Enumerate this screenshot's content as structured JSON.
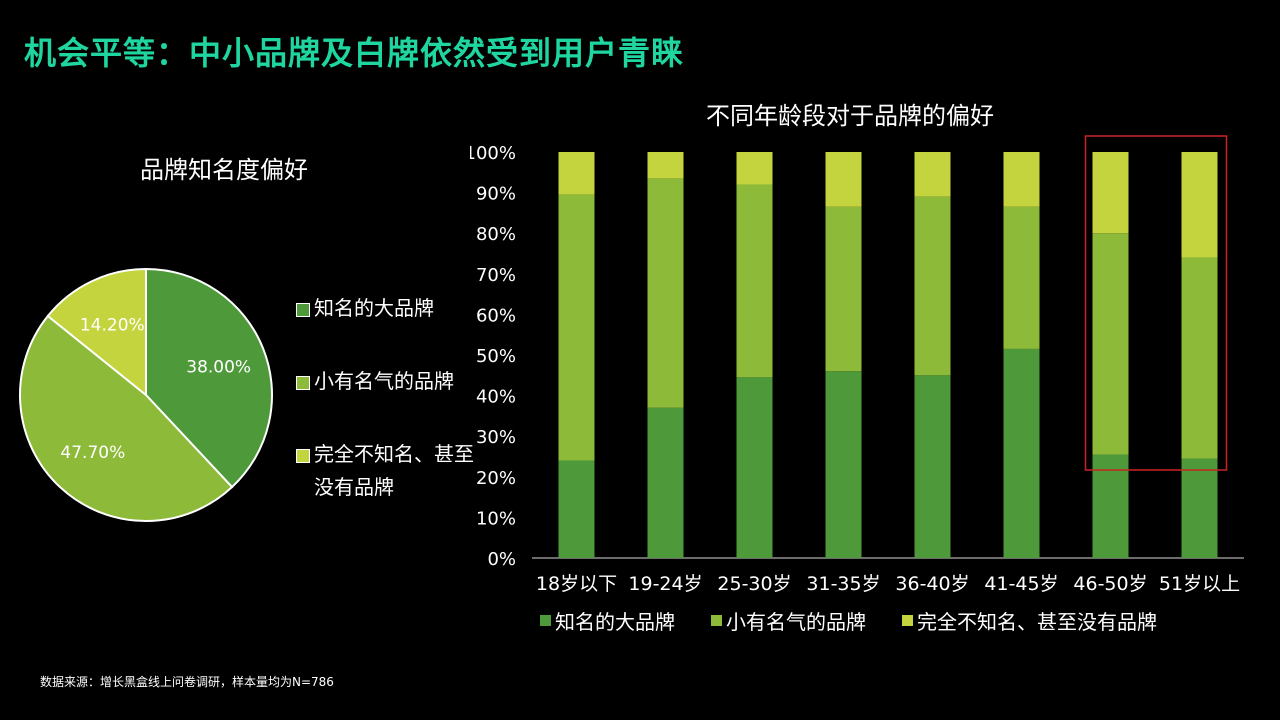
{
  "title": "机会平等：中小品牌及白牌依然受到用户青睐",
  "colors": {
    "title": "#1fd6a0",
    "known": "#4e9a3a",
    "somewhat": "#8dba39",
    "unknown": "#c4d43f",
    "highlight": "#cc2222"
  },
  "pie": {
    "title": "品牌知名度偏好",
    "legend": [
      "知名的大品牌",
      "小有名气的品牌",
      "完全不知名、甚至没有品牌"
    ]
  },
  "bar": {
    "title": "不同年龄段对于品牌的偏好",
    "legend": [
      "知名的大品牌",
      "小有名气的品牌",
      "完全不知名、甚至没有品牌"
    ]
  },
  "chart_data": [
    {
      "type": "pie",
      "title": "品牌知名度偏好",
      "labels": [
        "知名的大品牌",
        "小有名气的品牌",
        "完全不知名、甚至没有品牌"
      ],
      "values": [
        38.0,
        47.7,
        14.2
      ],
      "data_labels": [
        "38.00%",
        "47.70%",
        "14.20%"
      ],
      "legend": "right"
    },
    {
      "type": "bar",
      "stacked": true,
      "title": "不同年龄段对于品牌的偏好",
      "categories": [
        "18岁以下",
        "19-24岁",
        "25-30岁",
        "31-35岁",
        "36-40岁",
        "41-45岁",
        "46-50岁",
        "51岁以上"
      ],
      "series": [
        {
          "name": "知名的大品牌",
          "values": [
            24,
            37,
            44.5,
            46,
            45,
            51.5,
            25.5,
            24.5
          ]
        },
        {
          "name": "小有名气的品牌",
          "values": [
            65.5,
            56.5,
            47.5,
            40.5,
            44,
            35,
            54.5,
            49.5
          ]
        },
        {
          "name": "完全不知名、甚至没有品牌",
          "values": [
            10.5,
            6.5,
            8,
            13.5,
            11,
            13.5,
            20,
            26
          ]
        }
      ],
      "ylim": [
        0,
        100
      ],
      "yticks": [
        "0%",
        "10%",
        "20%",
        "30%",
        "40%",
        "50%",
        "60%",
        "70%",
        "80%",
        "90%",
        "100%"
      ],
      "highlight_categories": [
        "46-50岁",
        "51岁以上"
      ],
      "legend": "bottom"
    }
  ],
  "source": "数据来源：增长黑盒线上问卷调研，样本量均为N=786"
}
